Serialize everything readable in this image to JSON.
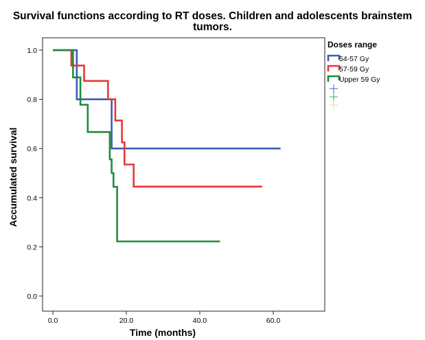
{
  "chart_data": {
    "type": "line",
    "step": true,
    "title": "Survival functions according to RT doses. Children and adolescents brainstem tumors.",
    "xlabel": "Time (months)",
    "ylabel": "Accumulated survival",
    "xlim": [
      0,
      62
    ],
    "ylim": [
      0,
      1.0
    ],
    "x_ticks": [
      "0.0",
      "20.0",
      "40.0",
      "60.0"
    ],
    "y_ticks": [
      "0.0",
      "0.2",
      "0.4",
      "0.6",
      "0.8",
      "1.0"
    ],
    "grid": false,
    "legend": {
      "title": "Doses range",
      "placement": "right",
      "censored_markers": [
        "#4a67b8",
        "#3fae58",
        "#e8d8a8"
      ]
    },
    "series": [
      {
        "name": "54-57 Gy",
        "color": "#3b5cb5",
        "x": [
          0,
          6.5,
          16.0,
          62.0
        ],
        "y": [
          1.0,
          0.8,
          0.6,
          0.6
        ]
      },
      {
        "name": "57-59 Gy",
        "color": "#e8373a",
        "x": [
          0,
          5.0,
          8.5,
          15.0,
          17.0,
          18.8,
          19.5,
          22.0,
          57.0
        ],
        "y": [
          1.0,
          0.9375,
          0.875,
          0.8,
          0.714,
          0.625,
          0.535,
          0.445,
          0.445
        ],
        "line_end": 57.0
      },
      {
        "name": "Upper 59 Gy",
        "color": "#1f8a3c",
        "x": [
          0,
          5.5,
          7.5,
          9.5,
          15.5,
          16.0,
          16.5,
          17.5,
          45.5
        ],
        "y": [
          1.0,
          0.889,
          0.778,
          0.667,
          0.556,
          0.5,
          0.444,
          0.222,
          0.222
        ]
      }
    ]
  }
}
